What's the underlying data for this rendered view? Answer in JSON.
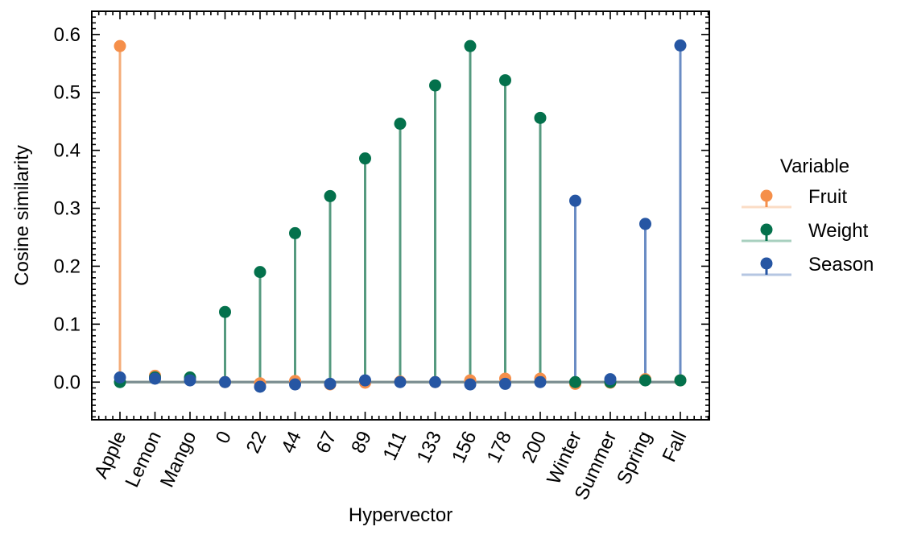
{
  "chart_data": {
    "type": "stem",
    "xlabel": "Hypervector",
    "ylabel": "Cosine similarity",
    "categories": [
      "Apple",
      "Lemon",
      "Mango",
      "0",
      "22",
      "44",
      "67",
      "89",
      "111",
      "133",
      "156",
      "178",
      "200",
      "Winter",
      "Summer",
      "Spring",
      "Fall"
    ],
    "ylim": [
      -0.065,
      0.64
    ],
    "yticks": [
      0.0,
      0.1,
      0.2,
      0.3,
      0.4,
      0.5,
      0.6
    ],
    "ytick_labels": [
      "0.0",
      "0.1",
      "0.2",
      "0.3",
      "0.4",
      "0.5",
      "0.6"
    ],
    "legend": {
      "title": "Variable",
      "placement": "right-outside"
    },
    "series": [
      {
        "name": "Fruit",
        "color": "#f58f4a",
        "line_color": "#f4ac79",
        "values": [
          0.58,
          0.011,
          0.005,
          0.0,
          -0.002,
          0.002,
          -0.004,
          -0.001,
          0.001,
          0.0,
          0.003,
          0.006,
          0.006,
          -0.003,
          -0.001,
          0.005,
          0.003
        ]
      },
      {
        "name": "Weight",
        "color": "#04714c",
        "line_color": "#559a7f",
        "values": [
          0.0,
          0.008,
          0.008,
          0.121,
          0.19,
          0.257,
          0.321,
          0.386,
          0.446,
          0.512,
          0.58,
          0.521,
          0.456,
          0.0,
          0.0,
          0.003,
          0.003
        ]
      },
      {
        "name": "Season",
        "color": "#2656a3",
        "line_color": "#6a8cc4",
        "values": [
          0.008,
          0.006,
          0.003,
          0.0,
          -0.008,
          -0.004,
          -0.003,
          0.003,
          0.0,
          0.0,
          -0.004,
          -0.003,
          0.0,
          0.313,
          0.005,
          0.273,
          0.581
        ]
      }
    ]
  }
}
